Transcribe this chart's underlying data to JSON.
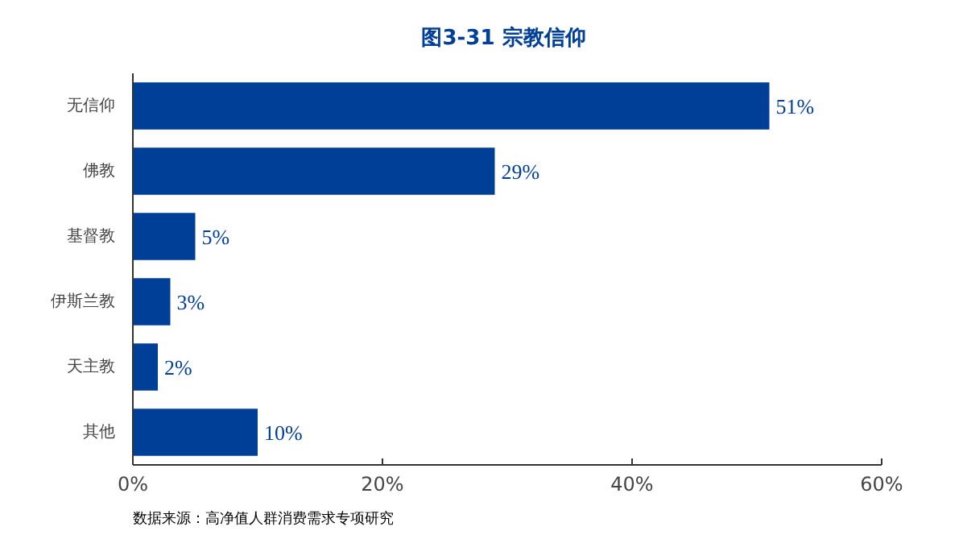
{
  "chart_data": {
    "type": "bar",
    "orientation": "horizontal",
    "title": "图3-31  宗教信仰",
    "categories": [
      "无信仰",
      "佛教",
      "基督教",
      "伊斯兰教",
      "天主教",
      "其他"
    ],
    "values": [
      51,
      29,
      5,
      3,
      2,
      10
    ],
    "value_labels": [
      "51%",
      "29%",
      "5%",
      "3%",
      "2%",
      "10%"
    ],
    "color": "#003f98",
    "xlim": [
      0,
      60
    ],
    "xticks": [
      {
        "value": 0,
        "label": "0%"
      },
      {
        "value": 20,
        "label": "20%"
      },
      {
        "value": 40,
        "label": "40%"
      },
      {
        "value": 60,
        "label": "60%"
      }
    ],
    "grid": false,
    "annotations": [
      "数据来源：高净值人群消费需求专项研究"
    ]
  }
}
